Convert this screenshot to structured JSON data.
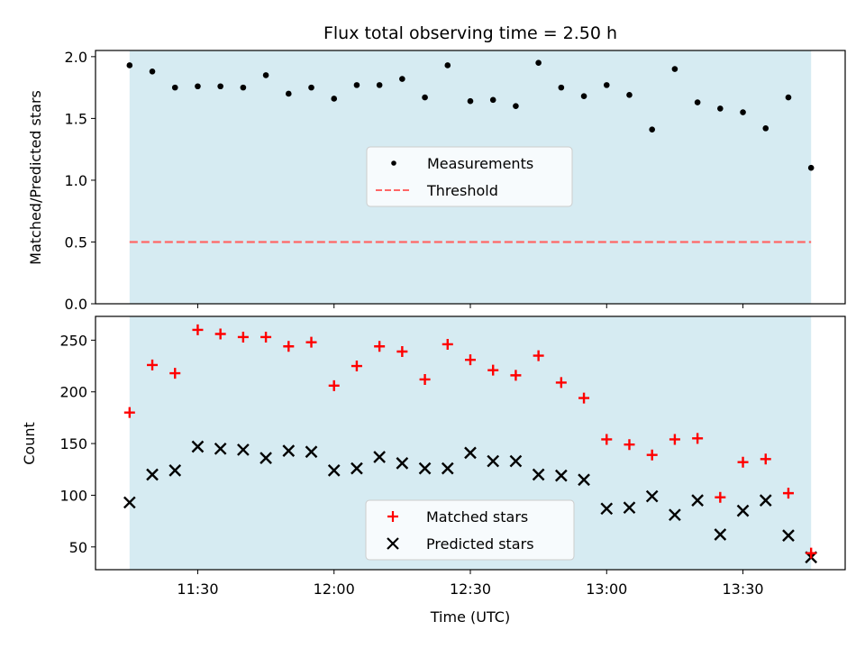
{
  "title": "Flux total observing time = 2.50 h",
  "colors": {
    "band": "#add8e6",
    "measurement": "#000000",
    "threshold": "#ff6666",
    "matched": "#ff0000",
    "predicted": "#000000"
  },
  "chart_data": [
    {
      "type": "scatter",
      "ylabel": "Matched/Predicted stars",
      "xlabel": "",
      "ylim": [
        0.0,
        2.05
      ],
      "yticks": [
        0.0,
        0.5,
        1.0,
        1.5,
        2.0
      ],
      "ytick_labels": [
        "0.0",
        "0.5",
        "1.0",
        "1.5",
        "2.0"
      ],
      "legend_placement": "center",
      "threshold": 0.5,
      "series": [
        {
          "name": "Measurements",
          "x": [
            "11:15",
            "11:20",
            "11:25",
            "11:30",
            "11:35",
            "11:40",
            "11:45",
            "11:50",
            "11:55",
            "12:00",
            "12:05",
            "12:10",
            "12:15",
            "12:20",
            "12:25",
            "12:30",
            "12:35",
            "12:40",
            "12:45",
            "12:50",
            "12:55",
            "13:00",
            "13:05",
            "13:10",
            "13:15",
            "13:20",
            "13:25",
            "13:30",
            "13:35",
            "13:40",
            "13:45"
          ],
          "values": [
            1.93,
            1.88,
            1.75,
            1.76,
            1.76,
            1.75,
            1.85,
            1.7,
            1.75,
            1.66,
            1.77,
            1.77,
            1.82,
            1.67,
            1.93,
            1.64,
            1.65,
            1.6,
            1.95,
            1.75,
            1.68,
            1.77,
            1.69,
            1.41,
            1.9,
            1.63,
            1.58,
            1.55,
            1.42,
            1.67,
            1.1
          ]
        },
        {
          "name": "Threshold",
          "values": [
            0.5
          ]
        }
      ]
    },
    {
      "type": "scatter",
      "ylabel": "Count",
      "xlabel": "Time (UTC)",
      "ylim": [
        28,
        273
      ],
      "yticks": [
        50,
        100,
        150,
        200,
        250
      ],
      "ytick_labels": [
        "50",
        "100",
        "150",
        "200",
        "250"
      ],
      "xlim": [
        "11:07.5",
        "13:52.5"
      ],
      "xticks": [
        "11:30",
        "12:00",
        "12:30",
        "13:00",
        "13:30"
      ],
      "legend_placement": "lower center",
      "series": [
        {
          "name": "Matched stars",
          "x": [
            "11:15",
            "11:20",
            "11:25",
            "11:30",
            "11:35",
            "11:40",
            "11:45",
            "11:50",
            "11:55",
            "12:00",
            "12:05",
            "12:10",
            "12:15",
            "12:20",
            "12:25",
            "12:30",
            "12:35",
            "12:40",
            "12:45",
            "12:50",
            "12:55",
            "13:00",
            "13:05",
            "13:10",
            "13:15",
            "13:20",
            "13:25",
            "13:30",
            "13:35",
            "13:40",
            "13:45"
          ],
          "values": [
            180,
            226,
            218,
            260,
            256,
            253,
            253,
            244,
            248,
            206,
            225,
            244,
            239,
            212,
            246,
            231,
            221,
            216,
            235,
            209,
            194,
            154,
            149,
            139,
            154,
            155,
            98,
            132,
            135,
            102,
            44
          ]
        },
        {
          "name": "Predicted stars",
          "x": [
            "11:15",
            "11:20",
            "11:25",
            "11:30",
            "11:35",
            "11:40",
            "11:45",
            "11:50",
            "11:55",
            "12:00",
            "12:05",
            "12:10",
            "12:15",
            "12:20",
            "12:25",
            "12:30",
            "12:35",
            "12:40",
            "12:45",
            "12:50",
            "12:55",
            "13:00",
            "13:05",
            "13:10",
            "13:15",
            "13:20",
            "13:25",
            "13:30",
            "13:35",
            "13:40",
            "13:45"
          ],
          "values": [
            93,
            120,
            124,
            147,
            145,
            144,
            136,
            143,
            142,
            124,
            126,
            137,
            131,
            126,
            126,
            141,
            133,
            133,
            120,
            119,
            115,
            87,
            88,
            99,
            81,
            95,
            62,
            85,
            95,
            61,
            40
          ]
        }
      ]
    }
  ],
  "band": {
    "start": "11:15",
    "end": "13:45"
  }
}
